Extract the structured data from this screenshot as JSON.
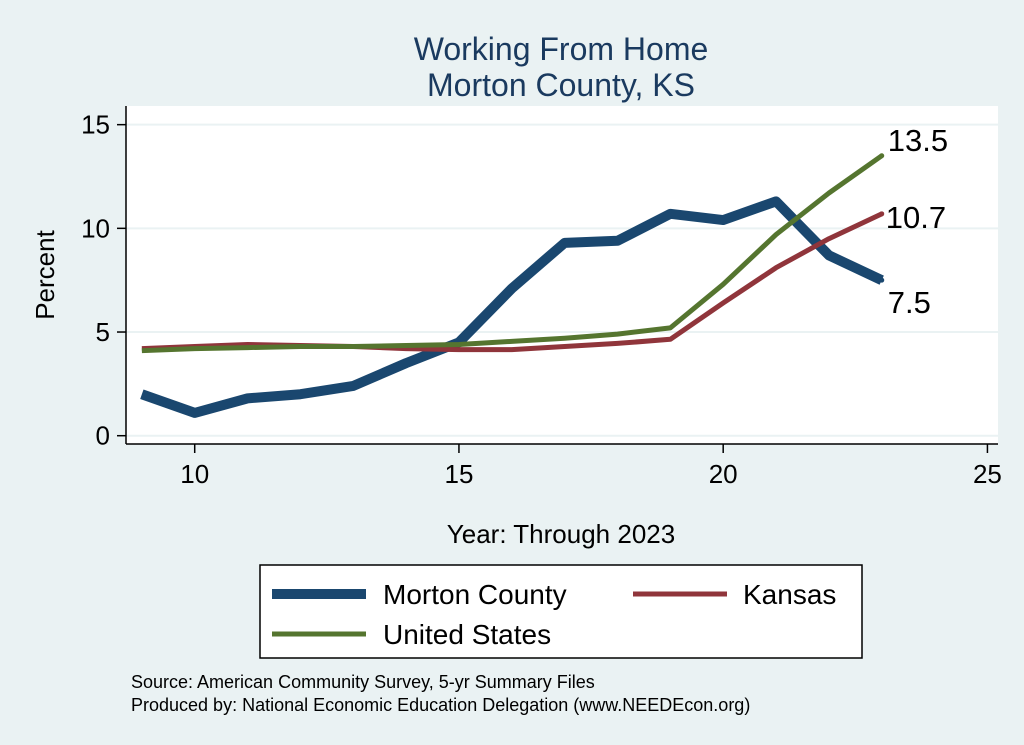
{
  "chart_data": {
    "type": "line",
    "title": [
      "Working From Home",
      "Morton County, KS"
    ],
    "xlabel": "Year: Through 2023",
    "ylabel": "Percent",
    "xlim": [
      8.7,
      25.2
    ],
    "ylim": [
      -0.4,
      15.9
    ],
    "xticks": [
      10,
      15,
      20,
      25
    ],
    "yticks": [
      0,
      5,
      10,
      15
    ],
    "grid": true,
    "legend_position": "bottom",
    "series": [
      {
        "name": "Morton County",
        "color": "#1a476f",
        "x": [
          9,
          10,
          11,
          12,
          13,
          14,
          15,
          16,
          17,
          18,
          19,
          20,
          21,
          22,
          23
        ],
        "values": [
          2.0,
          1.1,
          1.8,
          2.0,
          2.4,
          3.5,
          4.5,
          7.1,
          9.3,
          9.4,
          10.7,
          10.4,
          11.3,
          8.7,
          7.5
        ],
        "end_label": "7.5"
      },
      {
        "name": "Kansas",
        "color": "#90353b",
        "x": [
          9,
          10,
          11,
          12,
          13,
          14,
          15,
          16,
          17,
          18,
          19,
          20,
          21,
          22,
          23
        ],
        "values": [
          4.2,
          4.3,
          4.4,
          4.35,
          4.3,
          4.2,
          4.15,
          4.15,
          4.3,
          4.45,
          4.65,
          6.4,
          8.1,
          9.5,
          10.7
        ],
        "end_label": "10.7"
      },
      {
        "name": "United States",
        "color": "#55752f",
        "x": [
          9,
          10,
          11,
          12,
          13,
          14,
          15,
          16,
          17,
          18,
          19,
          20,
          21,
          22,
          23
        ],
        "values": [
          4.1,
          4.2,
          4.25,
          4.3,
          4.3,
          4.35,
          4.4,
          4.55,
          4.7,
          4.9,
          5.2,
          7.3,
          9.7,
          11.7,
          13.5
        ],
        "end_label": "13.5"
      }
    ],
    "notes": [
      "Source: American Community Survey, 5-yr Summary Files",
      "Produced by: National Economic Education Delegation (www.NEEDEcon.org)"
    ]
  }
}
